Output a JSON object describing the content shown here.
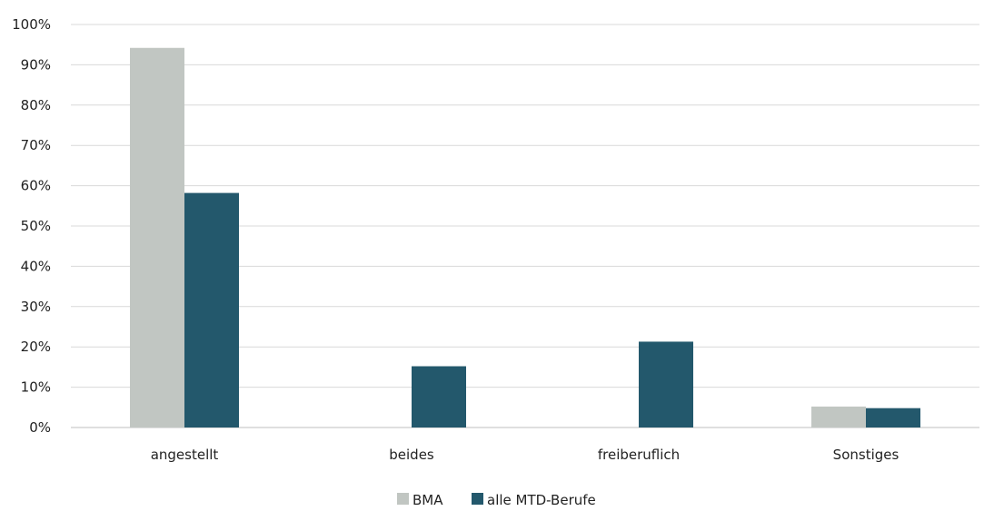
{
  "chart_data": {
    "type": "bar",
    "categories": [
      "angestellt",
      "beides",
      "freiberuflich",
      "Sonstiges"
    ],
    "series": [
      {
        "name": "BMA",
        "color": "#c1c6c2",
        "values": [
          94.2,
          0,
          0,
          5.2
        ]
      },
      {
        "name": "alle MTD-Berufe",
        "color": "#23586c",
        "values": [
          58.2,
          15.2,
          21.3,
          4.8
        ]
      }
    ],
    "ylim": [
      0,
      100
    ],
    "yticks": [
      "0%",
      "10%",
      "20%",
      "30%",
      "40%",
      "50%",
      "60%",
      "70%",
      "80%",
      "90%",
      "100%"
    ],
    "grid": true,
    "legend_position": "bottom-center",
    "title": "",
    "xlabel": "",
    "ylabel": ""
  }
}
